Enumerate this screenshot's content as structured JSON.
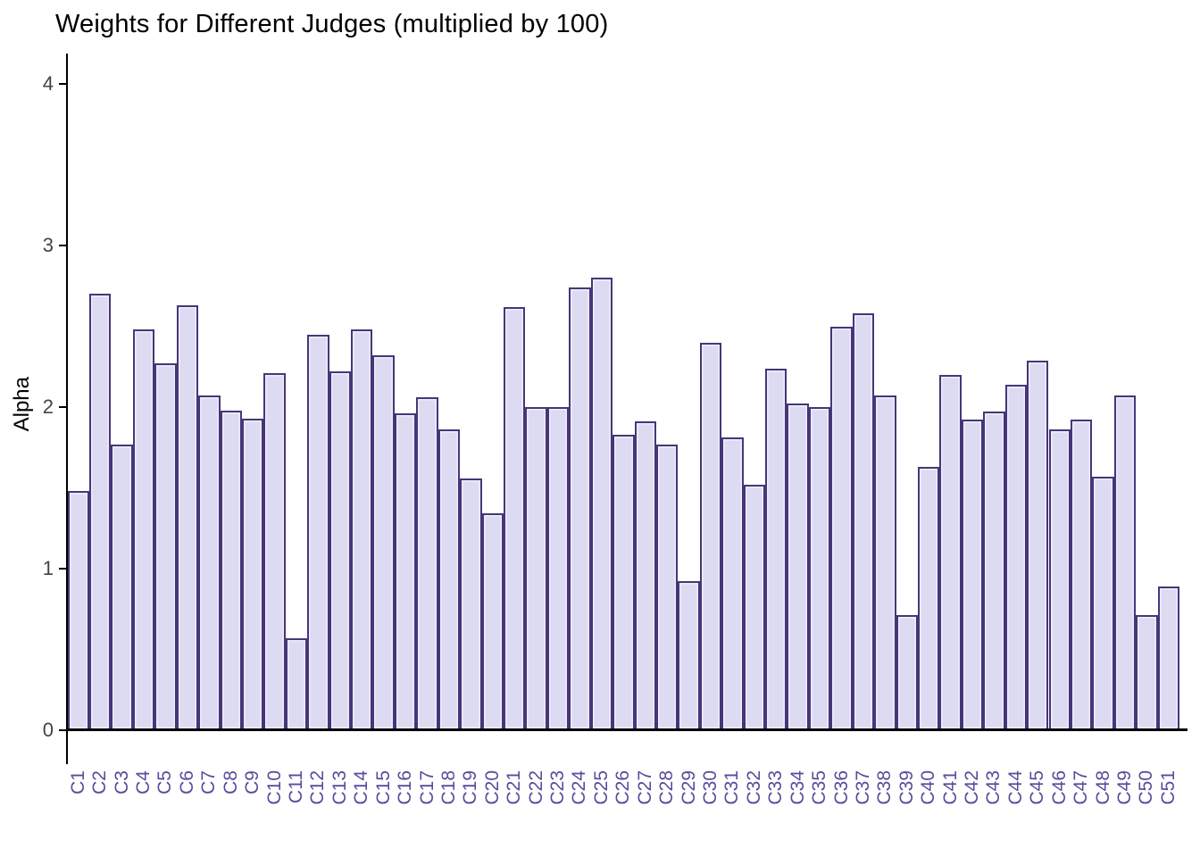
{
  "chart_data": {
    "type": "bar",
    "title": "Weights for Different Judges (multiplied by 100)",
    "ylabel": "Alpha",
    "xlabel": "",
    "ylim": [
      0,
      4
    ],
    "yticks": [
      0,
      1,
      2,
      3,
      4
    ],
    "grid": false,
    "legend_position": "none",
    "categories": [
      "C1",
      "C2",
      "C3",
      "C4",
      "C5",
      "C6",
      "C7",
      "C8",
      "C9",
      "C10",
      "C11",
      "C12",
      "C13",
      "C14",
      "C15",
      "C16",
      "C17",
      "C18",
      "C19",
      "C20",
      "C21",
      "C22",
      "C23",
      "C24",
      "C25",
      "C26",
      "C27",
      "C28",
      "C29",
      "C30",
      "C31",
      "C32",
      "C33",
      "C34",
      "C35",
      "C36",
      "C37",
      "C38",
      "C39",
      "C40",
      "C41",
      "C42",
      "C43",
      "C44",
      "C45",
      "C46",
      "C47",
      "C48",
      "C49",
      "C50",
      "C51"
    ],
    "values": [
      1.48,
      2.7,
      1.77,
      2.48,
      2.27,
      2.63,
      2.07,
      1.98,
      1.93,
      2.21,
      0.57,
      2.45,
      2.22,
      2.48,
      2.32,
      1.96,
      2.06,
      1.86,
      1.56,
      1.34,
      2.62,
      2.0,
      2.0,
      2.74,
      2.8,
      1.83,
      1.91,
      1.77,
      0.92,
      2.4,
      1.81,
      1.52,
      2.24,
      2.02,
      2.0,
      2.5,
      2.58,
      2.07,
      0.71,
      1.63,
      2.2,
      1.92,
      1.97,
      2.14,
      2.29,
      1.86,
      1.92,
      1.57,
      2.07,
      0.71,
      0.89
    ],
    "colors": {
      "bar_fill": "#dcdbf2",
      "bar_border": "#473677",
      "x_tick_label": "#5c4a9b",
      "y_tick_label": "#434343",
      "axis_line": "#000000",
      "title_text": "#000000"
    }
  }
}
